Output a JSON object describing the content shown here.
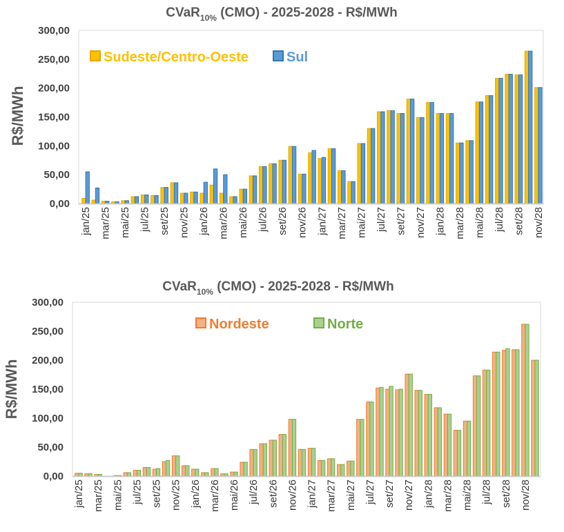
{
  "colors": {
    "sudeste": "#FFC000",
    "sudeste_edge": "#E0A800",
    "sul": "#5B9BD5",
    "sul_edge": "#2E75B6",
    "nordeste": "#F4B183",
    "nordeste_edge": "#ED7D31",
    "norte": "#A9D18E",
    "norte_edge": "#70AD47",
    "legend_sudeste": "#FFC000",
    "legend_sul": "#5B9BD5",
    "legend_nordeste": "#ED7D31",
    "legend_norte": "#70AD47"
  },
  "chart_data": [
    {
      "type": "bar",
      "title_main": "CVaR",
      "title_sub": "10%",
      "title_rest": " (CMO) - 2025-2028 - R$/MWh",
      "ylabel": "R$/MWh",
      "ylim": [
        0,
        300
      ],
      "yticks": [
        "0,00",
        "50,00",
        "100,00",
        "150,00",
        "200,00",
        "250,00",
        "300,00"
      ],
      "xtick_labels": [
        "jan/25",
        "mar/25",
        "mai/25",
        "jul/25",
        "set/25",
        "nov/25",
        "jan/26",
        "mar/26",
        "mai/26",
        "jul/26",
        "set/26",
        "nov/26",
        "jan/27",
        "mar/27",
        "mai/27",
        "jul/27",
        "set/27",
        "nov/27",
        "jan/28",
        "mar/28",
        "mai/28",
        "jul/28",
        "set/28",
        "nov/28"
      ],
      "legend_placement": "top-left",
      "series": [
        {
          "name": "Sudeste/Centro-Oeste",
          "values": [
            9,
            6,
            4,
            3,
            5,
            12,
            15,
            14,
            28,
            36,
            18,
            20,
            18,
            32,
            18,
            12,
            25,
            48,
            64,
            69,
            75,
            99,
            51,
            88,
            78,
            95,
            57,
            38,
            104,
            130,
            159,
            161,
            156,
            181,
            149,
            175,
            156,
            156,
            105,
            109,
            176,
            187,
            217,
            224,
            223,
            264,
            201
          ]
        },
        {
          "name": "Sul",
          "values": [
            55,
            27,
            4,
            3,
            5,
            12,
            15,
            14,
            28,
            36,
            18,
            20,
            37,
            60,
            50,
            12,
            25,
            48,
            64,
            69,
            75,
            99,
            51,
            92,
            80,
            95,
            57,
            38,
            104,
            130,
            159,
            161,
            156,
            181,
            149,
            175,
            156,
            156,
            105,
            109,
            176,
            187,
            217,
            224,
            223,
            264,
            201
          ]
        }
      ]
    },
    {
      "type": "bar",
      "title_main": "CVaR",
      "title_sub": "10%",
      "title_rest": " (CMO) - 2025-2028 - R$/MWh",
      "ylabel": "R$/MWh",
      "ylim": [
        0,
        300
      ],
      "yticks": [
        "0,00",
        "50,00",
        "100,00",
        "150,00",
        "200,00",
        "250,00",
        "300,00"
      ],
      "xtick_labels": [
        "jan/25",
        "mar/25",
        "mai/25",
        "jul/25",
        "set/25",
        "nov/25",
        "jan/26",
        "mar/26",
        "mai/26",
        "jul/26",
        "set/26",
        "nov/26",
        "jan/27",
        "mar/27",
        "mai/27",
        "jul/27",
        "set/27",
        "nov/27",
        "jan/28",
        "mar/28",
        "mai/28",
        "jul/28",
        "set/28",
        "nov/28"
      ],
      "legend_placement": "top-center",
      "series": [
        {
          "name": "Nordeste",
          "values": [
            5,
            4,
            3,
            0,
            1,
            6,
            10,
            15,
            12,
            25,
            35,
            18,
            12,
            6,
            13,
            4,
            7,
            24,
            46,
            56,
            62,
            72,
            98,
            46,
            48,
            27,
            30,
            20,
            26,
            98,
            128,
            152,
            150,
            149,
            176,
            148,
            141,
            118,
            107,
            79,
            95,
            173,
            183,
            214,
            217,
            218,
            262,
            200
          ]
        },
        {
          "name": "Norte",
          "values": [
            5,
            4,
            3,
            0,
            1,
            6,
            10,
            15,
            13,
            27,
            35,
            18,
            12,
            6,
            13,
            4,
            7,
            24,
            46,
            56,
            62,
            72,
            98,
            46,
            48,
            27,
            30,
            20,
            26,
            98,
            128,
            153,
            155,
            150,
            176,
            148,
            141,
            118,
            107,
            79,
            95,
            173,
            183,
            214,
            220,
            218,
            262,
            200
          ]
        }
      ]
    }
  ]
}
